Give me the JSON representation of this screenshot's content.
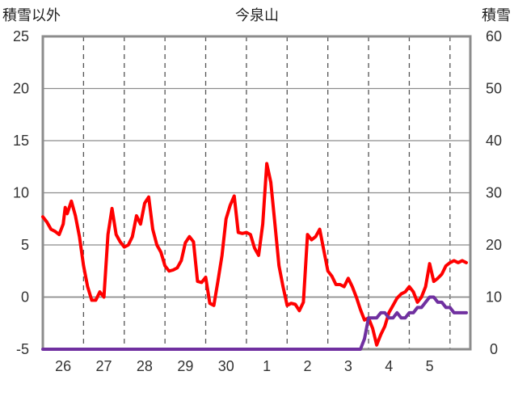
{
  "chart_data": {
    "type": "line",
    "title": "今泉山",
    "left_axis_label": "積雪以外",
    "right_axis_label": "積雪",
    "left_axis": {
      "range": [
        -5,
        25
      ],
      "ticks": [
        -5,
        0,
        5,
        10,
        15,
        20,
        25
      ]
    },
    "right_axis": {
      "range": [
        0,
        60
      ],
      "ticks": [
        0,
        10,
        20,
        30,
        40,
        50,
        60
      ]
    },
    "x_range": [
      0,
      10.5
    ],
    "x_tick_labels": [
      {
        "x": 0.5,
        "label": "26"
      },
      {
        "x": 1.5,
        "label": "27"
      },
      {
        "x": 2.5,
        "label": "28"
      },
      {
        "x": 3.5,
        "label": "29"
      },
      {
        "x": 4.5,
        "label": "30"
      },
      {
        "x": 5.5,
        "label": "1"
      },
      {
        "x": 6.5,
        "label": "2"
      },
      {
        "x": 7.5,
        "label": "3"
      },
      {
        "x": 8.5,
        "label": "4"
      },
      {
        "x": 9.5,
        "label": "5"
      }
    ],
    "grid": "vertical dashed lines at day boundaries",
    "series": [
      {
        "color": "#ff0000",
        "axis": "left",
        "x": [
          0.0,
          0.1,
          0.2,
          0.3,
          0.4,
          0.5,
          0.55,
          0.6,
          0.7,
          0.8,
          0.9,
          1.0,
          1.1,
          1.2,
          1.3,
          1.4,
          1.5,
          1.6,
          1.7,
          1.8,
          1.9,
          2.0,
          2.1,
          2.2,
          2.3,
          2.4,
          2.5,
          2.6,
          2.7,
          2.8,
          2.9,
          3.0,
          3.1,
          3.2,
          3.3,
          3.4,
          3.5,
          3.6,
          3.7,
          3.8,
          3.9,
          4.0,
          4.1,
          4.2,
          4.3,
          4.4,
          4.5,
          4.6,
          4.7,
          4.8,
          4.9,
          5.0,
          5.1,
          5.2,
          5.3,
          5.4,
          5.5,
          5.6,
          5.7,
          5.8,
          5.9,
          6.0,
          6.1,
          6.2,
          6.3,
          6.4,
          6.5,
          6.6,
          6.7,
          6.8,
          6.9,
          7.0,
          7.1,
          7.2,
          7.3,
          7.4,
          7.5,
          7.6,
          7.7,
          7.8,
          7.9,
          8.0,
          8.1,
          8.2,
          8.3,
          8.4,
          8.5,
          8.6,
          8.7,
          8.8,
          8.9,
          9.0,
          9.1,
          9.2,
          9.3,
          9.4,
          9.5,
          9.6,
          9.7,
          9.8,
          9.9,
          10.0,
          10.1,
          10.2,
          10.3,
          10.4
        ],
        "y": [
          7.7,
          7.2,
          6.5,
          6.3,
          6.0,
          7.0,
          8.6,
          8.0,
          9.2,
          7.8,
          5.8,
          3.0,
          1.0,
          -0.3,
          -0.3,
          0.5,
          0.0,
          6.0,
          8.5,
          6.0,
          5.3,
          4.8,
          5.0,
          5.8,
          7.8,
          7.0,
          9.0,
          9.6,
          6.5,
          5.0,
          4.3,
          3.0,
          2.5,
          2.6,
          2.8,
          3.5,
          5.2,
          5.8,
          5.3,
          1.5,
          1.4,
          1.9,
          -0.6,
          -0.8,
          1.5,
          4.0,
          7.5,
          8.8,
          9.7,
          6.2,
          6.1,
          6.2,
          6.0,
          4.7,
          4.0,
          7.0,
          12.8,
          11.0,
          7.0,
          3.0,
          1.0,
          -0.8,
          -0.6,
          -0.7,
          -1.3,
          -0.5,
          6.0,
          5.5,
          5.8,
          6.5,
          4.5,
          2.5,
          2.0,
          1.2,
          1.2,
          1.0,
          1.8,
          1.0,
          0.0,
          -1.2,
          -2.2,
          -2.0,
          -3.0,
          -4.6,
          -3.6,
          -2.8,
          -1.5,
          -0.8,
          -0.1,
          0.3,
          0.5,
          1.0,
          0.5,
          -0.5,
          0.0,
          1.0,
          3.2,
          1.5,
          1.8,
          2.2,
          3.0,
          3.3,
          3.5,
          3.3,
          3.5,
          3.3
        ]
      },
      {
        "color": "#7030a0",
        "axis": "right",
        "x": [
          0.0,
          1.0,
          2.0,
          3.0,
          4.0,
          5.0,
          6.0,
          7.0,
          7.5,
          7.7,
          7.8,
          7.9,
          8.0,
          8.1,
          8.2,
          8.3,
          8.4,
          8.5,
          8.6,
          8.7,
          8.8,
          8.9,
          9.0,
          9.1,
          9.2,
          9.3,
          9.4,
          9.5,
          9.6,
          9.7,
          9.8,
          9.9,
          10.0,
          10.1,
          10.2,
          10.3,
          10.4
        ],
        "y": [
          0,
          0,
          0,
          0,
          0,
          0,
          0,
          0,
          0,
          0,
          0,
          2,
          6,
          6,
          6,
          7,
          7,
          6,
          6,
          7,
          6,
          6,
          7,
          7,
          8,
          8,
          9,
          10,
          10,
          9,
          9,
          8,
          8,
          7,
          7,
          7,
          7
        ]
      }
    ]
  }
}
